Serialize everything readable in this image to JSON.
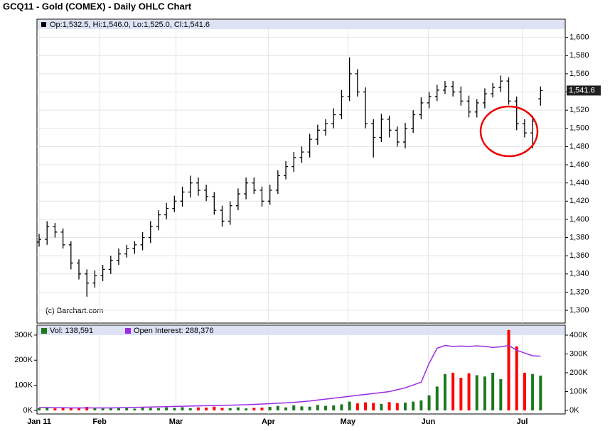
{
  "chart_data": [
    {
      "type": "ohlc",
      "title": "GCQ11 - Gold (COMEX) - Daily OHLC Chart",
      "legend_text": "Op:1,532.5, Hi:1,546.0, Lo:1,525.0, Cl:1,541.6",
      "source": "(c) Barchart.com",
      "last_label": "1,541.6",
      "color": "#000000",
      "grid": true,
      "x": [
        0,
        1,
        2,
        3,
        4,
        5,
        6,
        7,
        8,
        9,
        10,
        11,
        12,
        13,
        14,
        15,
        16,
        17,
        18,
        19,
        20,
        21,
        22,
        23,
        24,
        25,
        26,
        27,
        28,
        29,
        30,
        31,
        32,
        33,
        34,
        35,
        36,
        37,
        38,
        39,
        40,
        41,
        42,
        43,
        44,
        45,
        46,
        47,
        48,
        49,
        50,
        51,
        52,
        53,
        54,
        55,
        56,
        57,
        58,
        59,
        60,
        61,
        62,
        63
      ],
      "open": [
        1375,
        1378,
        1392,
        1386,
        1372,
        1352,
        1340,
        1330,
        1338,
        1345,
        1355,
        1362,
        1368,
        1372,
        1380,
        1392,
        1405,
        1412,
        1420,
        1430,
        1440,
        1432,
        1425,
        1410,
        1398,
        1415,
        1428,
        1440,
        1432,
        1420,
        1432,
        1448,
        1458,
        1468,
        1474,
        1488,
        1498,
        1505,
        1515,
        1535,
        1560,
        1540,
        1505,
        1490,
        1510,
        1498,
        1485,
        1500,
        1515,
        1528,
        1535,
        1542,
        1546,
        1540,
        1530,
        1518,
        1528,
        1538,
        1545,
        1552,
        1530,
        1505,
        1495,
        1532.5
      ],
      "high": [
        1384,
        1398,
        1396,
        1390,
        1376,
        1356,
        1345,
        1344,
        1350,
        1360,
        1368,
        1372,
        1376,
        1386,
        1398,
        1410,
        1418,
        1426,
        1436,
        1448,
        1446,
        1438,
        1430,
        1415,
        1420,
        1434,
        1446,
        1446,
        1436,
        1438,
        1454,
        1464,
        1474,
        1480,
        1494,
        1504,
        1510,
        1522,
        1542,
        1578,
        1565,
        1545,
        1510,
        1516,
        1514,
        1502,
        1506,
        1520,
        1534,
        1540,
        1548,
        1552,
        1552,
        1546,
        1536,
        1532,
        1544,
        1550,
        1558,
        1556,
        1535,
        1510,
        1514,
        1546
      ],
      "low": [
        1370,
        1372,
        1380,
        1368,
        1345,
        1334,
        1315,
        1325,
        1332,
        1340,
        1350,
        1358,
        1362,
        1366,
        1374,
        1388,
        1400,
        1408,
        1414,
        1424,
        1426,
        1420,
        1405,
        1392,
        1394,
        1410,
        1422,
        1428,
        1414,
        1416,
        1428,
        1444,
        1452,
        1462,
        1468,
        1482,
        1492,
        1500,
        1510,
        1530,
        1535,
        1500,
        1468,
        1485,
        1490,
        1480,
        1478,
        1495,
        1510,
        1522,
        1530,
        1538,
        1535,
        1525,
        1512,
        1512,
        1522,
        1534,
        1540,
        1526,
        1498,
        1490,
        1478,
        1525
      ],
      "close": [
        1378,
        1392,
        1386,
        1372,
        1352,
        1340,
        1330,
        1338,
        1345,
        1355,
        1362,
        1368,
        1372,
        1380,
        1392,
        1405,
        1412,
        1420,
        1430,
        1440,
        1432,
        1425,
        1410,
        1398,
        1415,
        1428,
        1440,
        1432,
        1420,
        1432,
        1448,
        1458,
        1468,
        1474,
        1488,
        1498,
        1505,
        1515,
        1535,
        1560,
        1540,
        1505,
        1490,
        1510,
        1498,
        1485,
        1500,
        1515,
        1528,
        1535,
        1542,
        1546,
        1540,
        1530,
        1518,
        1528,
        1538,
        1545,
        1552,
        1530,
        1505,
        1495,
        1508,
        1541.6
      ],
      "xlim": [
        -0.27,
        66.1
      ],
      "xticks": [
        {
          "value": 0,
          "label": "Jan 11"
        },
        {
          "value": 7.6,
          "label": "Feb"
        },
        {
          "value": 17.2,
          "label": "Mar"
        },
        {
          "value": 28.8,
          "label": "Apr"
        },
        {
          "value": 38.8,
          "label": "May"
        },
        {
          "value": 48.9,
          "label": "Jun"
        },
        {
          "value": 60.7,
          "label": "Jul"
        }
      ],
      "ylim": [
        1286,
        1620
      ],
      "yticks": [
        {
          "value": 1300,
          "label": "1,300"
        },
        {
          "value": 1320,
          "label": "1,320"
        },
        {
          "value": 1340,
          "label": "1,340"
        },
        {
          "value": 1360,
          "label": "1,360"
        },
        {
          "value": 1380,
          "label": "1,380"
        },
        {
          "value": 1400,
          "label": "1,400"
        },
        {
          "value": 1420,
          "label": "1,420"
        },
        {
          "value": 1440,
          "label": "1,440"
        },
        {
          "value": 1460,
          "label": "1,460"
        },
        {
          "value": 1480,
          "label": "1,480"
        },
        {
          "value": 1500,
          "label": "1,500"
        },
        {
          "value": 1520,
          "label": "1,520"
        },
        {
          "value": 1540,
          "label": "1,540"
        },
        {
          "value": 1560,
          "label": "1,560"
        },
        {
          "value": 1580,
          "label": "1,580"
        },
        {
          "value": 1600,
          "label": "1,600"
        }
      ]
    },
    {
      "type": "bar",
      "up_color": "#1b7a1b",
      "down_color": "#ff0000",
      "series": [
        {
          "name": "Vol: 138,591",
          "color": "#1b7a1b",
          "values": [
            9000,
            11000,
            8000,
            12000,
            10000,
            9000,
            14000,
            11000,
            8000,
            10000,
            12000,
            9000,
            7000,
            11000,
            10000,
            9000,
            12000,
            10000,
            13000,
            9000,
            12000,
            11000,
            15000,
            10000,
            9000,
            12000,
            8000,
            10000,
            11000,
            14000,
            18000,
            12000,
            20000,
            16000,
            15000,
            22000,
            18000,
            20000,
            24000,
            35000,
            28000,
            32000,
            30000,
            26000,
            33000,
            29000,
            31000,
            35000,
            40000,
            60000,
            95000,
            145000,
            150000,
            130000,
            148000,
            140000,
            135000,
            150000,
            125000,
            320000,
            255000,
            150000,
            145000,
            138591
          ]
        },
        {
          "name": "Open Interest: 288,376",
          "color": "#9a2be2",
          "type": "line",
          "axis": "y2",
          "values": [
            15000,
            15000,
            14000,
            14000,
            13000,
            13000,
            13000,
            13000,
            13000,
            13000,
            14000,
            15000,
            16000,
            17000,
            18000,
            19000,
            20000,
            21000,
            22000,
            23000,
            24000,
            25000,
            26000,
            27000,
            28000,
            29000,
            30000,
            32000,
            34000,
            36000,
            38000,
            40000,
            43000,
            46000,
            50000,
            55000,
            60000,
            65000,
            70000,
            75000,
            80000,
            85000,
            90000,
            95000,
            100000,
            110000,
            120000,
            135000,
            150000,
            250000,
            330000,
            345000,
            340000,
            342000,
            340000,
            343000,
            340000,
            335000,
            338000,
            345000,
            320000,
            305000,
            290000,
            288376
          ]
        }
      ],
      "ylim": [
        0,
        328000
      ],
      "yticks": [
        {
          "value": 0,
          "label": "0K"
        },
        {
          "value": 100000,
          "label": "100K"
        },
        {
          "value": 200000,
          "label": "200K"
        },
        {
          "value": 300000,
          "label": "300K"
        }
      ],
      "y2lim": [
        0,
        437700
      ],
      "y2ticks": [
        {
          "value": 0,
          "label": "0K"
        },
        {
          "value": 100000,
          "label": "100K"
        },
        {
          "value": 200000,
          "label": "200K"
        },
        {
          "value": 300000,
          "label": "300K"
        },
        {
          "value": 400000,
          "label": "400K"
        }
      ]
    }
  ]
}
